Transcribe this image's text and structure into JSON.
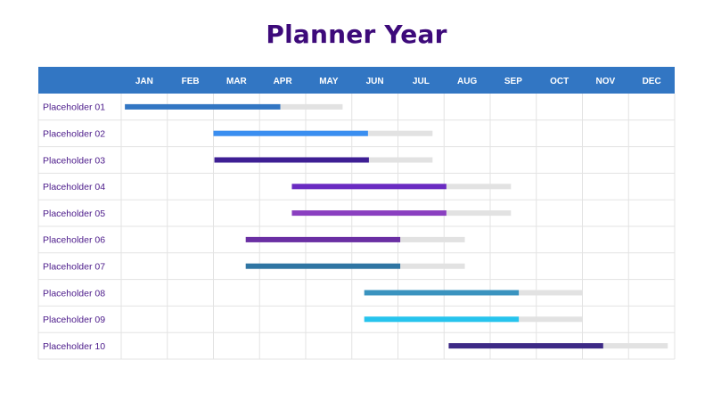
{
  "title": "Planner Year",
  "chart_data": {
    "type": "gantt",
    "title": "Planner Year",
    "months": [
      "JAN",
      "FEB",
      "MAR",
      "APR",
      "MAY",
      "JUN",
      "JUL",
      "AUG",
      "SEP",
      "OCT",
      "NOV",
      "DEC"
    ],
    "x_unit": "month index (0 = start of JAN, 12 = end of DEC)",
    "colors": {
      "header_bg": "#3276c3",
      "grid": "#e3e3e3",
      "remaining_bar": "#e2e2e2",
      "label_text": "#4b1a8a",
      "title_text": "#3d0a7a"
    },
    "tasks": [
      {
        "label": "Placeholder 01",
        "start": 0.08,
        "progress_end": 3.45,
        "end": 4.8,
        "color": "#3276c3"
      },
      {
        "label": "Placeholder 02",
        "start": 2.0,
        "progress_end": 5.35,
        "end": 6.75,
        "color": "#3a8ef0"
      },
      {
        "label": "Placeholder 03",
        "start": 2.02,
        "progress_end": 5.37,
        "end": 6.75,
        "color": "#3e1f94"
      },
      {
        "label": "Placeholder 04",
        "start": 3.7,
        "progress_end": 7.05,
        "end": 8.45,
        "color": "#6a2bc2"
      },
      {
        "label": "Placeholder 05",
        "start": 3.7,
        "progress_end": 7.05,
        "end": 8.45,
        "color": "#8a3fc0"
      },
      {
        "label": "Placeholder 06",
        "start": 2.7,
        "progress_end": 6.05,
        "end": 7.45,
        "color": "#6a2fa3"
      },
      {
        "label": "Placeholder 07",
        "start": 2.7,
        "progress_end": 6.05,
        "end": 7.45,
        "color": "#2f75a3"
      },
      {
        "label": "Placeholder 08",
        "start": 5.27,
        "progress_end": 8.62,
        "end": 10.0,
        "color": "#3a93bf"
      },
      {
        "label": "Placeholder 09",
        "start": 5.27,
        "progress_end": 8.62,
        "end": 10.0,
        "color": "#26c4ee"
      },
      {
        "label": "Placeholder 10",
        "start": 7.1,
        "progress_end": 10.45,
        "end": 11.85,
        "color": "#3d2a86"
      }
    ]
  }
}
